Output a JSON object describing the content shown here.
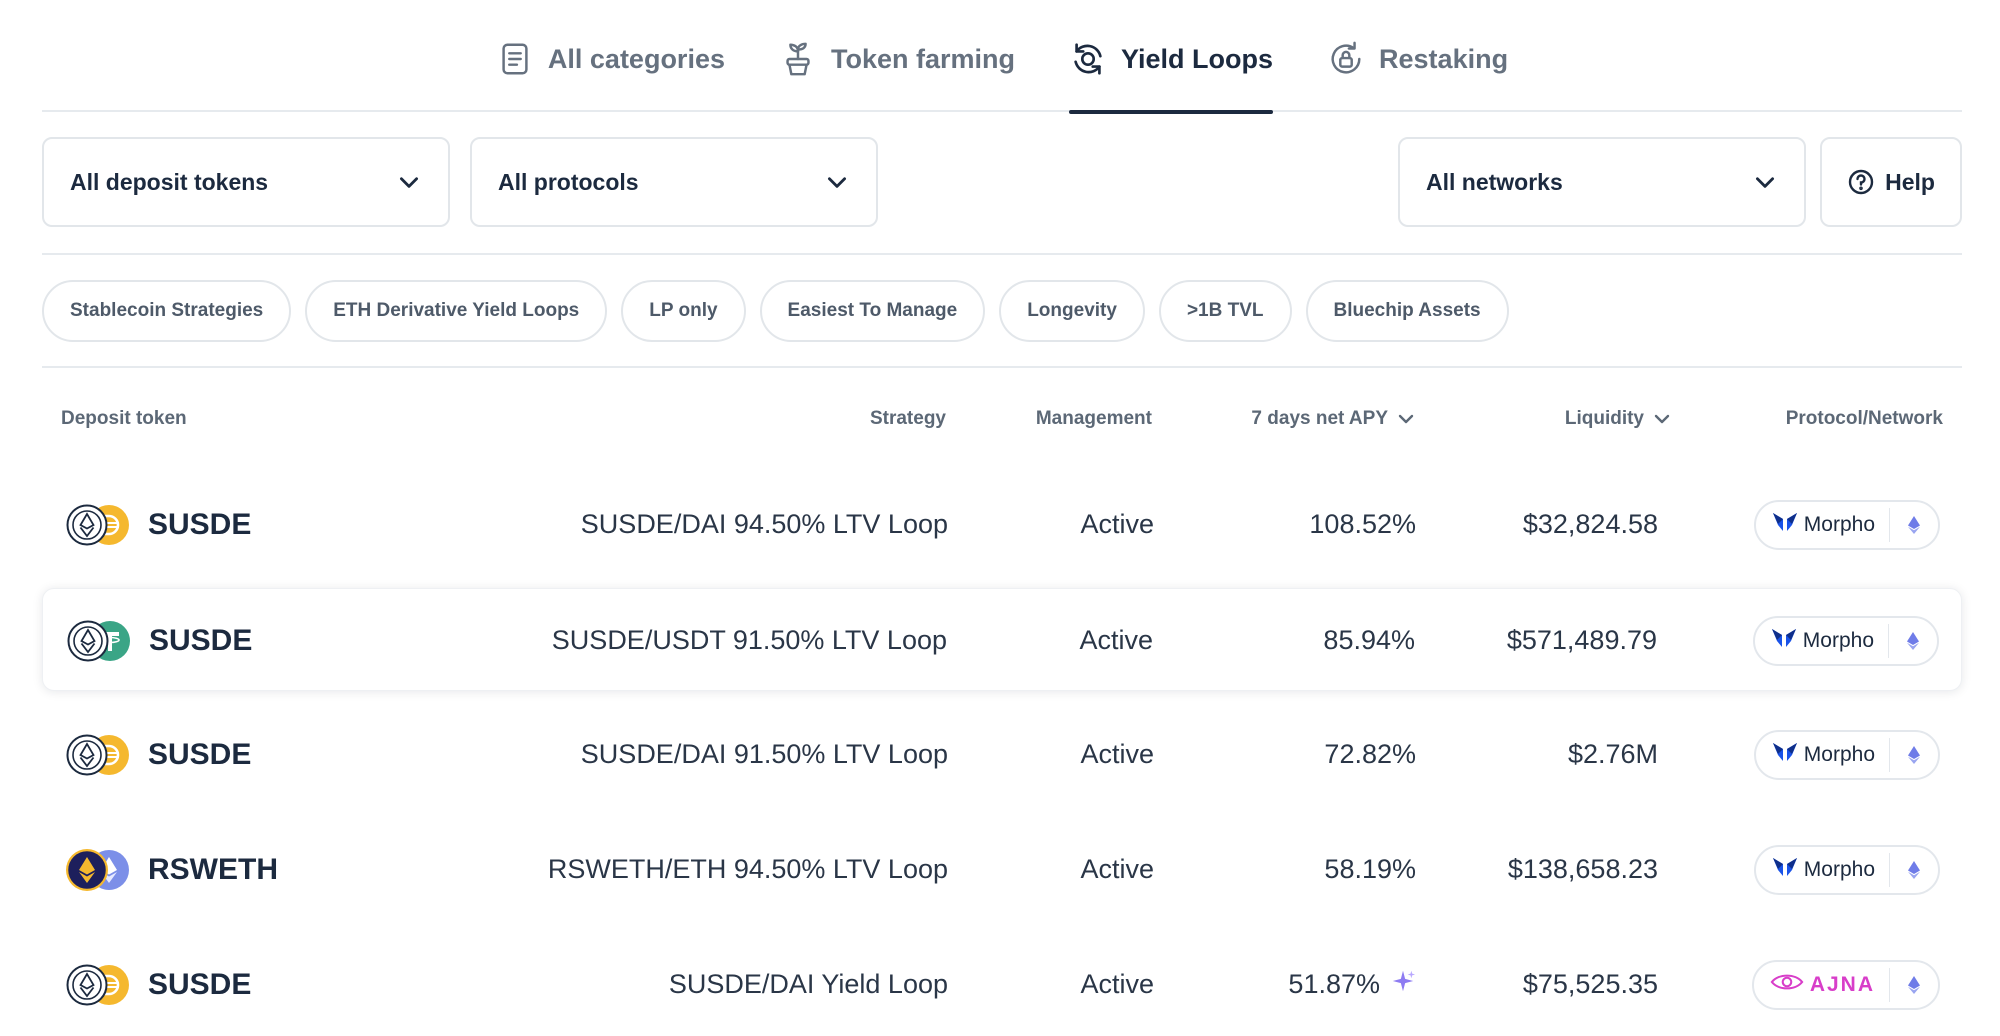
{
  "tabs": [
    {
      "label": "All categories",
      "icon": "document-icon"
    },
    {
      "label": "Token farming",
      "icon": "plant-icon"
    },
    {
      "label": "Yield Loops",
      "icon": "loop-icon",
      "active": true
    },
    {
      "label": "Restaking",
      "icon": "lock-refresh-icon"
    }
  ],
  "filters": {
    "deposit_tokens": "All deposit tokens",
    "protocols": "All protocols",
    "networks": "All networks",
    "help": "Help"
  },
  "chips": [
    "Stablecoin Strategies",
    "ETH Derivative Yield Loops",
    "LP only",
    "Easiest To Manage",
    "Longevity",
    ">1B TVL",
    "Bluechip Assets"
  ],
  "table": {
    "headers": {
      "deposit_token": "Deposit token",
      "strategy": "Strategy",
      "management": "Management",
      "apy": "7 days net APY",
      "liquidity": "Liquidity",
      "protocol_network": "Protocol/Network"
    },
    "rows": [
      {
        "token": "SUSDE",
        "pair_colors": [
          "#ffffff",
          "#f5b82e"
        ],
        "strategy": "SUSDE/DAI 94.50% LTV Loop",
        "management": "Active",
        "apy": "108.52%",
        "liquidity": "$32,824.58",
        "protocol": "Morpho"
      },
      {
        "token": "SUSDE",
        "pair_colors": [
          "#ffffff",
          "#3aa586"
        ],
        "strategy": "SUSDE/USDT 91.50% LTV Loop",
        "management": "Active",
        "apy": "85.94%",
        "liquidity": "$571,489.79",
        "protocol": "Morpho"
      },
      {
        "token": "SUSDE",
        "pair_colors": [
          "#ffffff",
          "#f5b82e"
        ],
        "strategy": "SUSDE/DAI 91.50% LTV Loop",
        "management": "Active",
        "apy": "72.82%",
        "liquidity": "$2.76M",
        "protocol": "Morpho"
      },
      {
        "token": "RSWETH",
        "pair_colors": [
          "#1d1f5c",
          "#7c8fe8"
        ],
        "strategy": "RSWETH/ETH 94.50% LTV Loop",
        "management": "Active",
        "apy": "58.19%",
        "liquidity": "$138,658.23",
        "protocol": "Morpho"
      },
      {
        "token": "SUSDE",
        "pair_colors": [
          "#ffffff",
          "#f5b82e"
        ],
        "strategy": "SUSDE/DAI Yield Loop",
        "management": "Active",
        "apy": "51.87%",
        "liquidity": "$75,525.35",
        "protocol": "AJNA"
      }
    ]
  },
  "colors": {
    "text": "#1c2a3f",
    "border": "#e2e6ea",
    "morpho_blue": "#1a53e8",
    "ajna_pink": "#d83ec9",
    "eth_purple": "#6f7ce8",
    "sparkle": "#8e7cf2"
  }
}
